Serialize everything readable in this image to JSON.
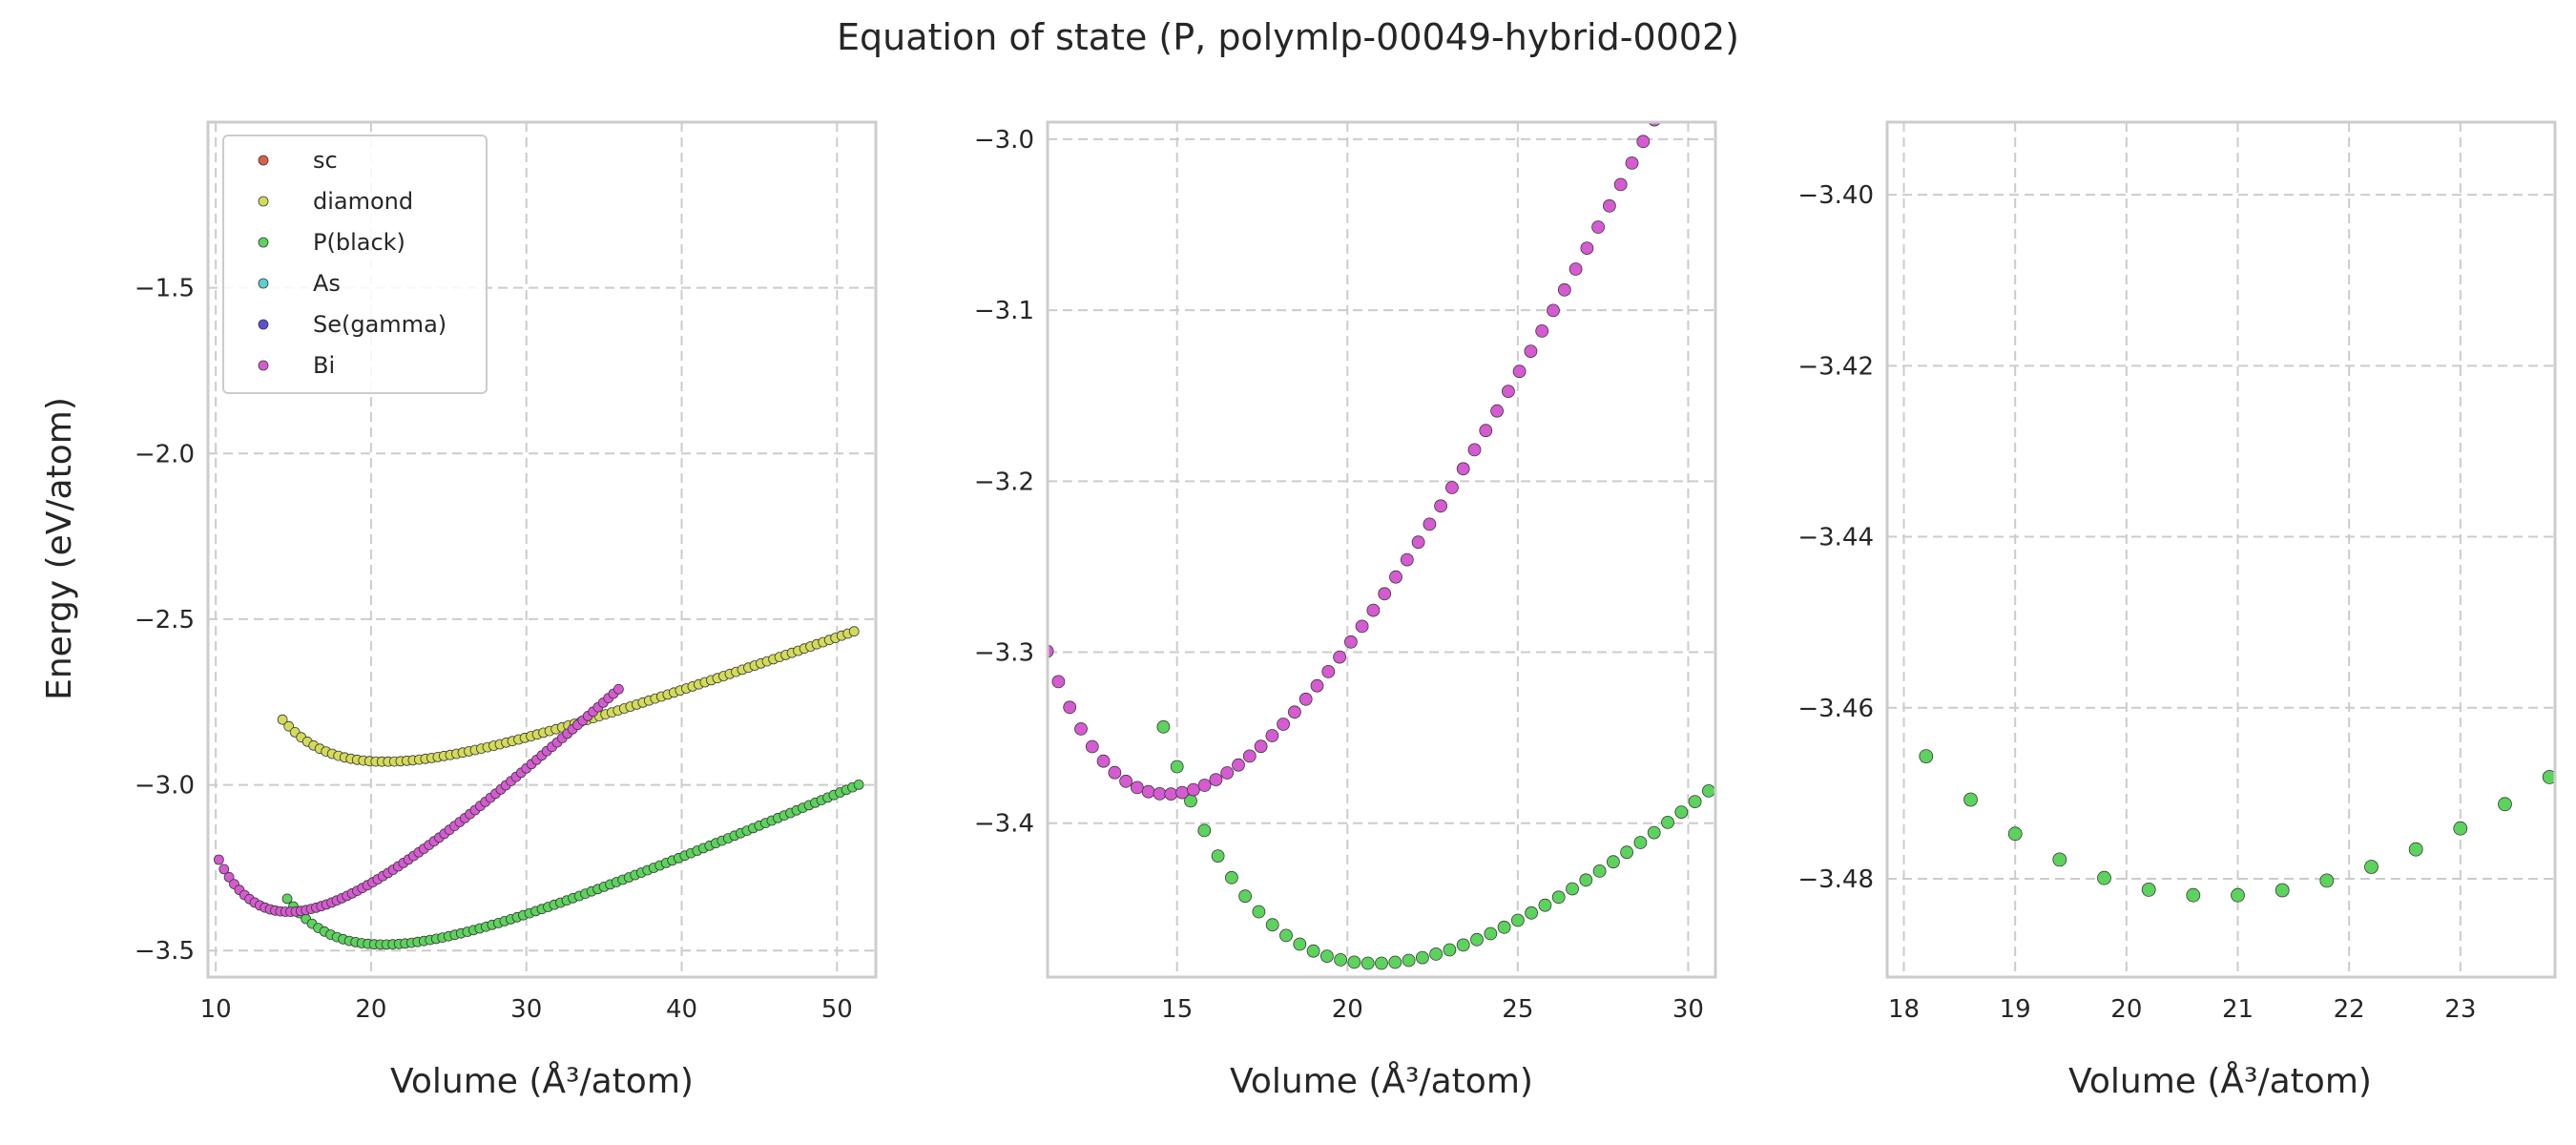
{
  "figure": {
    "title": "Equation of state (P, polymlp-00049-hybrid-0002)",
    "ylabel": "Energy (eV/atom)",
    "xlabel": "Volume (Å³/atom)"
  },
  "colors": {
    "sc": "#d95f4a",
    "diamond": "#d4db5a",
    "P(black)": "#5cd35c",
    "As": "#5ccfd1",
    "Se(gamma)": "#5a4fd1",
    "Bi": "#d65ad1"
  },
  "chart_data": [
    {
      "type": "scatter",
      "panel": "full-range",
      "xlabel": "Volume (Å³/atom)",
      "ylabel": "Energy (eV/atom)",
      "xlim": [
        9.5,
        52.5
      ],
      "ylim": [
        -3.58,
        -1.0
      ],
      "xticks": [
        10,
        20,
        30,
        40,
        50
      ],
      "yticks": [
        -3.5,
        -3.0,
        -2.5,
        -2.0,
        -1.5
      ],
      "grid": true,
      "legend_placement": "top-left",
      "legend": [
        "sc",
        "diamond",
        "P(black)",
        "As",
        "Se(gamma)",
        "Bi"
      ],
      "series": [
        {
          "name": "sc",
          "x": [],
          "y": []
        },
        {
          "name": "diamond",
          "curve": {
            "v0": 20.9,
            "e0": -2.93,
            "B": 0.0032,
            "bp": 3.8,
            "vmin": 14.3,
            "vmax": 51.2,
            "step": 0.4
          }
        },
        {
          "name": "P(black)",
          "curve": {
            "v0": 20.8,
            "e0": -3.482,
            "B": 0.004,
            "bp": 4.0,
            "vmin": 14.6,
            "vmax": 51.5,
            "step": 0.4
          }
        },
        {
          "name": "As",
          "x": [],
          "y": []
        },
        {
          "name": "Se(gamma)",
          "x": [],
          "y": []
        },
        {
          "name": "Bi",
          "curve": {
            "v0": 14.7,
            "e0": -3.383,
            "B": 0.0068,
            "bp": 3.1,
            "vmin": 10.2,
            "vmax": 36.0,
            "step": 0.33
          }
        }
      ]
    },
    {
      "type": "scatter",
      "panel": "zoom-minima",
      "xlabel": "Volume (Å³/atom)",
      "xlim": [
        11.2,
        30.8
      ],
      "ylim": [
        -3.49,
        -2.99
      ],
      "xticks": [
        15,
        20,
        25,
        30
      ],
      "yticks": [
        -3.4,
        -3.3,
        -3.2,
        -3.1,
        -3.0
      ],
      "grid": true,
      "series": [
        {
          "name": "P(black)",
          "curve": {
            "v0": 20.8,
            "e0": -3.482,
            "B": 0.004,
            "bp": 4.0,
            "vmin": 14.6,
            "vmax": 51.5,
            "step": 0.4
          }
        },
        {
          "name": "Bi",
          "curve": {
            "v0": 14.7,
            "e0": -3.383,
            "B": 0.0068,
            "bp": 3.1,
            "vmin": 10.2,
            "vmax": 36.0,
            "step": 0.33
          }
        }
      ]
    },
    {
      "type": "scatter",
      "panel": "zoom-black-phosphorus",
      "xlabel": "Volume (Å³/atom)",
      "xlim": [
        17.85,
        23.85
      ],
      "ylim": [
        -3.4915,
        -3.3915
      ],
      "xticks": [
        18,
        19,
        20,
        21,
        22,
        23
      ],
      "yticks": [
        -3.48,
        -3.46,
        -3.44,
        -3.42,
        -3.4
      ],
      "grid": true,
      "series": [
        {
          "name": "P(black)",
          "curve": {
            "v0": 20.8,
            "e0": -3.482,
            "B": 0.004,
            "bp": 4.0,
            "vmin": 14.6,
            "vmax": 51.5,
            "step": 0.4
          }
        }
      ]
    }
  ]
}
